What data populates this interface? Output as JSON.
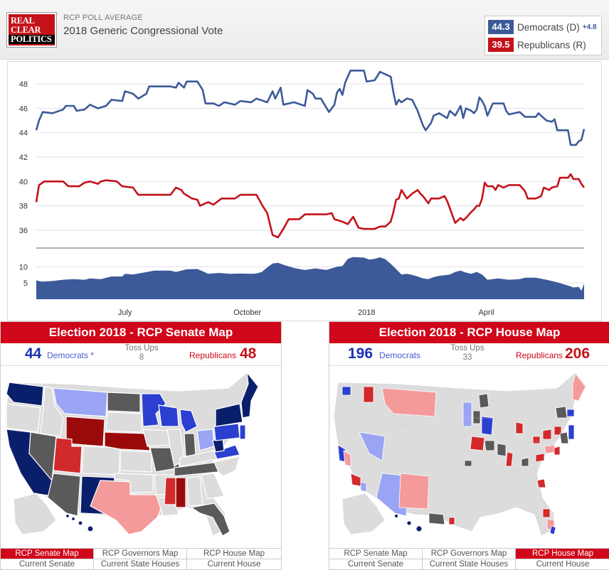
{
  "header": {
    "logo_lines": [
      "REAL",
      "CLEAR",
      "POLITICS"
    ],
    "kicker": "RCP POLL AVERAGE",
    "title": "2018 Generic Congressional Vote"
  },
  "legend": {
    "dem": {
      "value": "44.3",
      "name": "Democrats (D)",
      "spread": "+4.8",
      "color": "#3c5a99"
    },
    "rep": {
      "value": "39.5",
      "name": "Republicans (R)",
      "color": "#c4121a"
    }
  },
  "chart_data": {
    "type": "line",
    "ylim": [
      35,
      49
    ],
    "yticks": [
      36,
      38,
      40,
      42,
      44,
      46,
      48
    ],
    "xticks": [
      {
        "label": "July",
        "t": 0.165
      },
      {
        "label": "October",
        "t": 0.393
      },
      {
        "label": "2018",
        "t": 0.615
      },
      {
        "label": "April",
        "t": 0.838
      }
    ],
    "series": [
      {
        "color": "#3c5a99",
        "points": [
          [
            0,
            44.2
          ],
          [
            0.005,
            45.0
          ],
          [
            0.012,
            45.7
          ],
          [
            0.03,
            45.6
          ],
          [
            0.05,
            45.9
          ],
          [
            0.055,
            46.2
          ],
          [
            0.07,
            46.2
          ],
          [
            0.075,
            45.8
          ],
          [
            0.09,
            45.9
          ],
          [
            0.1,
            46.3
          ],
          [
            0.115,
            46.0
          ],
          [
            0.13,
            46.2
          ],
          [
            0.14,
            46.7
          ],
          [
            0.16,
            46.6
          ],
          [
            0.165,
            47.4
          ],
          [
            0.18,
            47.2
          ],
          [
            0.19,
            46.8
          ],
          [
            0.205,
            47.2
          ],
          [
            0.21,
            47.8
          ],
          [
            0.25,
            47.8
          ],
          [
            0.26,
            47.7
          ],
          [
            0.265,
            48.1
          ],
          [
            0.275,
            47.7
          ],
          [
            0.28,
            48.2
          ],
          [
            0.3,
            48.2
          ],
          [
            0.31,
            47.5
          ],
          [
            0.315,
            46.4
          ],
          [
            0.33,
            46.4
          ],
          [
            0.34,
            46.2
          ],
          [
            0.35,
            46.5
          ],
          [
            0.37,
            46.3
          ],
          [
            0.38,
            46.6
          ],
          [
            0.4,
            46.5
          ],
          [
            0.41,
            46.8
          ],
          [
            0.43,
            46.5
          ],
          [
            0.44,
            47.4
          ],
          [
            0.445,
            46.8
          ],
          [
            0.455,
            47.7
          ],
          [
            0.46,
            46.3
          ],
          [
            0.48,
            46.5
          ],
          [
            0.5,
            46.2
          ],
          [
            0.505,
            47.5
          ],
          [
            0.515,
            47.2
          ],
          [
            0.52,
            46.8
          ],
          [
            0.53,
            46.8
          ],
          [
            0.545,
            45.7
          ],
          [
            0.555,
            46.3
          ],
          [
            0.56,
            47.3
          ],
          [
            0.565,
            47.6
          ],
          [
            0.57,
            47.1
          ],
          [
            0.575,
            48.1
          ],
          [
            0.585,
            49.1
          ],
          [
            0.61,
            49.1
          ],
          [
            0.615,
            48.2
          ],
          [
            0.63,
            48.3
          ],
          [
            0.64,
            49.0
          ],
          [
            0.66,
            48.6
          ],
          [
            0.665,
            47.3
          ],
          [
            0.67,
            46.3
          ],
          [
            0.675,
            46.7
          ],
          [
            0.68,
            46.5
          ],
          [
            0.69,
            46.8
          ],
          [
            0.7,
            46.7
          ],
          [
            0.71,
            45.8
          ],
          [
            0.72,
            44.6
          ],
          [
            0.725,
            44.2
          ],
          [
            0.735,
            44.8
          ],
          [
            0.74,
            45.4
          ],
          [
            0.75,
            45.6
          ],
          [
            0.765,
            45.2
          ],
          [
            0.77,
            45.8
          ],
          [
            0.78,
            45.4
          ],
          [
            0.79,
            46.2
          ],
          [
            0.795,
            45.2
          ],
          [
            0.8,
            46.0
          ],
          [
            0.81,
            45.8
          ],
          [
            0.815,
            45.6
          ],
          [
            0.82,
            45.9
          ],
          [
            0.825,
            46.9
          ],
          [
            0.83,
            46.6
          ],
          [
            0.835,
            46.2
          ],
          [
            0.84,
            45.4
          ],
          [
            0.85,
            46.4
          ],
          [
            0.87,
            46.4
          ],
          [
            0.875,
            45.8
          ],
          [
            0.88,
            45.5
          ],
          [
            0.9,
            45.7
          ],
          [
            0.91,
            45.3
          ],
          [
            0.93,
            45.3
          ],
          [
            0.935,
            45.6
          ],
          [
            0.95,
            45.0
          ],
          [
            0.96,
            44.9
          ],
          [
            0.965,
            45.1
          ],
          [
            0.97,
            44.2
          ],
          [
            0.99,
            44.2
          ],
          [
            0.995,
            43.0
          ],
          [
            1.005,
            43.0
          ],
          [
            1.01,
            43.3
          ],
          [
            1.015,
            43.4
          ],
          [
            1.02,
            44.3
          ]
        ]
      },
      {
        "color": "#c4121a",
        "points": [
          [
            0,
            38.3
          ],
          [
            0.005,
            39.7
          ],
          [
            0.015,
            40.0
          ],
          [
            0.05,
            40.0
          ],
          [
            0.06,
            39.6
          ],
          [
            0.08,
            39.6
          ],
          [
            0.09,
            39.9
          ],
          [
            0.1,
            40.0
          ],
          [
            0.115,
            39.8
          ],
          [
            0.12,
            40.0
          ],
          [
            0.13,
            40.1
          ],
          [
            0.15,
            40.0
          ],
          [
            0.16,
            39.6
          ],
          [
            0.18,
            39.5
          ],
          [
            0.19,
            38.9
          ],
          [
            0.25,
            38.9
          ],
          [
            0.26,
            39.5
          ],
          [
            0.27,
            39.3
          ],
          [
            0.275,
            39.0
          ],
          [
            0.29,
            38.6
          ],
          [
            0.3,
            38.5
          ],
          [
            0.305,
            38.0
          ],
          [
            0.315,
            38.2
          ],
          [
            0.32,
            38.3
          ],
          [
            0.33,
            38.1
          ],
          [
            0.345,
            38.6
          ],
          [
            0.37,
            38.6
          ],
          [
            0.38,
            38.9
          ],
          [
            0.39,
            38.9
          ],
          [
            0.41,
            38.9
          ],
          [
            0.42,
            38.1
          ],
          [
            0.43,
            37.4
          ],
          [
            0.44,
            35.6
          ],
          [
            0.45,
            35.4
          ],
          [
            0.46,
            36.1
          ],
          [
            0.47,
            36.9
          ],
          [
            0.49,
            36.9
          ],
          [
            0.5,
            37.3
          ],
          [
            0.54,
            37.3
          ],
          [
            0.55,
            37.4
          ],
          [
            0.555,
            36.9
          ],
          [
            0.57,
            36.7
          ],
          [
            0.58,
            36.5
          ],
          [
            0.59,
            37.1
          ],
          [
            0.6,
            36.2
          ],
          [
            0.61,
            36.1
          ],
          [
            0.63,
            36.1
          ],
          [
            0.64,
            36.3
          ],
          [
            0.65,
            36.3
          ],
          [
            0.66,
            36.7
          ],
          [
            0.665,
            37.5
          ],
          [
            0.67,
            38.5
          ],
          [
            0.675,
            38.6
          ],
          [
            0.68,
            39.3
          ],
          [
            0.69,
            38.6
          ],
          [
            0.7,
            39.0
          ],
          [
            0.71,
            39.3
          ],
          [
            0.715,
            39.0
          ],
          [
            0.72,
            38.8
          ],
          [
            0.73,
            38.2
          ],
          [
            0.735,
            38.6
          ],
          [
            0.75,
            38.6
          ],
          [
            0.76,
            38.8
          ],
          [
            0.765,
            38.4
          ],
          [
            0.77,
            37.8
          ],
          [
            0.775,
            37.2
          ],
          [
            0.78,
            36.6
          ],
          [
            0.79,
            37.0
          ],
          [
            0.795,
            36.8
          ],
          [
            0.8,
            37.0
          ],
          [
            0.81,
            37.5
          ],
          [
            0.815,
            37.7
          ],
          [
            0.82,
            38.0
          ],
          [
            0.825,
            38.0
          ],
          [
            0.83,
            38.6
          ],
          [
            0.835,
            39.9
          ],
          [
            0.84,
            39.6
          ],
          [
            0.85,
            39.6
          ],
          [
            0.855,
            39.3
          ],
          [
            0.86,
            39.7
          ],
          [
            0.87,
            39.5
          ],
          [
            0.88,
            39.7
          ],
          [
            0.9,
            39.7
          ],
          [
            0.91,
            39.2
          ],
          [
            0.915,
            38.6
          ],
          [
            0.93,
            38.6
          ],
          [
            0.94,
            38.8
          ],
          [
            0.945,
            39.5
          ],
          [
            0.955,
            39.3
          ],
          [
            0.96,
            39.5
          ],
          [
            0.97,
            39.6
          ],
          [
            0.975,
            40.3
          ],
          [
            0.99,
            40.3
          ],
          [
            0.995,
            40.6
          ],
          [
            1.0,
            40.2
          ],
          [
            1.01,
            40.2
          ],
          [
            1.015,
            39.8
          ],
          [
            1.02,
            39.5
          ]
        ]
      }
    ],
    "spread": {
      "ylim": [
        0,
        14
      ],
      "yticks": [
        5,
        10
      ],
      "color": "#3c5a99",
      "points": [
        [
          0,
          5.8
        ],
        [
          0.01,
          5.4
        ],
        [
          0.03,
          5.6
        ],
        [
          0.05,
          6.0
        ],
        [
          0.07,
          6.2
        ],
        [
          0.09,
          6.0
        ],
        [
          0.1,
          6.4
        ],
        [
          0.12,
          6.2
        ],
        [
          0.14,
          7.0
        ],
        [
          0.16,
          7.0
        ],
        [
          0.165,
          7.8
        ],
        [
          0.18,
          7.6
        ],
        [
          0.2,
          8.2
        ],
        [
          0.22,
          8.8
        ],
        [
          0.25,
          8.8
        ],
        [
          0.26,
          8.4
        ],
        [
          0.28,
          9.2
        ],
        [
          0.3,
          9.3
        ],
        [
          0.31,
          8.6
        ],
        [
          0.32,
          7.8
        ],
        [
          0.34,
          8.1
        ],
        [
          0.36,
          7.8
        ],
        [
          0.38,
          7.9
        ],
        [
          0.4,
          7.8
        ],
        [
          0.41,
          7.9
        ],
        [
          0.42,
          8.4
        ],
        [
          0.43,
          9.8
        ],
        [
          0.44,
          11.0
        ],
        [
          0.45,
          11.2
        ],
        [
          0.46,
          10.6
        ],
        [
          0.48,
          9.6
        ],
        [
          0.5,
          9.0
        ],
        [
          0.52,
          9.5
        ],
        [
          0.54,
          9.0
        ],
        [
          0.56,
          10.0
        ],
        [
          0.57,
          10.2
        ],
        [
          0.58,
          12.4
        ],
        [
          0.59,
          13.0
        ],
        [
          0.61,
          12.8
        ],
        [
          0.62,
          12.2
        ],
        [
          0.63,
          12.4
        ],
        [
          0.64,
          12.9
        ],
        [
          0.65,
          12.3
        ],
        [
          0.66,
          10.9
        ],
        [
          0.67,
          9.3
        ],
        [
          0.68,
          7.6
        ],
        [
          0.69,
          7.8
        ],
        [
          0.7,
          7.5
        ],
        [
          0.71,
          7.0
        ],
        [
          0.72,
          6.4
        ],
        [
          0.73,
          6.2
        ],
        [
          0.74,
          6.8
        ],
        [
          0.75,
          7.2
        ],
        [
          0.76,
          7.4
        ],
        [
          0.77,
          7.6
        ],
        [
          0.78,
          8.4
        ],
        [
          0.79,
          8.8
        ],
        [
          0.8,
          8.2
        ],
        [
          0.81,
          7.8
        ],
        [
          0.82,
          8.4
        ],
        [
          0.83,
          7.6
        ],
        [
          0.84,
          6.0
        ],
        [
          0.86,
          6.4
        ],
        [
          0.88,
          6.0
        ],
        [
          0.9,
          6.2
        ],
        [
          0.91,
          6.6
        ],
        [
          0.93,
          6.6
        ],
        [
          0.95,
          6.0
        ],
        [
          0.97,
          5.2
        ],
        [
          0.99,
          4.2
        ],
        [
          1.0,
          3.6
        ],
        [
          1.01,
          3.8
        ],
        [
          1.015,
          2.6
        ],
        [
          1.02,
          4.8
        ]
      ]
    }
  },
  "senate": {
    "title": "Election 2018 - RCP Senate Map",
    "dem_count": "44",
    "dem_label": "Democrats *",
    "tossups_label": "Toss Ups",
    "tossups_count": "8",
    "rep_label": "Republicans",
    "rep_count": "48",
    "tabs": [
      "RCP Senate Map",
      "RCP Governors Map",
      "RCP House Map",
      "Current Senate",
      "Current State Houses",
      "Current House"
    ]
  },
  "house": {
    "title": "Election 2018 - RCP House Map",
    "dem_count": "196",
    "dem_label": "Democrats",
    "tossups_label": "Toss Ups",
    "tossups_count": "33",
    "rep_label": "Republicans",
    "rep_count": "206",
    "tabs": [
      "RCP Senate Map",
      "RCP Governors Map",
      "RCP House Map",
      "Current Senate",
      "Current State Houses",
      "Current House"
    ]
  },
  "map_colors": {
    "solid_dem": "#0a1f6b",
    "likely_dem": "#2b3fd0",
    "lean_dem": "#9aa4f5",
    "tossup": "#5a5a5a",
    "lean_rep": "#f59a9a",
    "likely_rep": "#d22a2a",
    "solid_rep": "#9a0a0a",
    "none": "#dcdcdc"
  }
}
